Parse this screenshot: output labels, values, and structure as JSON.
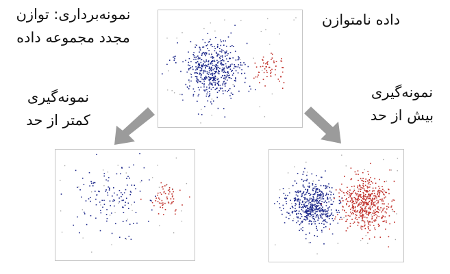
{
  "labels": {
    "title_line1": "نمونه‌برداری: توازن",
    "title_line2": "مجدد مجموعه داده",
    "imbalanced": "داده نامتوازن",
    "undersampling_line1": "نمونه‌گیری",
    "undersampling_line2": "کمتر از حد",
    "oversampling_line1": "نمونه‌گیری",
    "oversampling_line2": "بیش از حد"
  },
  "colors": {
    "majority": "#1f2a8c",
    "minority": "#c0302a",
    "arrow": "#9b9b9b",
    "panel_border": "#c4c4c4",
    "noise": "#a9a9a9"
  },
  "panels": {
    "imbalanced": {
      "majority_points": 520,
      "minority_points": 60,
      "majority_spread": 1.0,
      "minority_spread": 1.0
    },
    "undersampled": {
      "majority_points": 130,
      "minority_points": 60,
      "majority_spread": 1.2,
      "minority_spread": 1.0
    },
    "oversampled": {
      "majority_points": 520,
      "minority_points": 520,
      "majority_spread": 1.0,
      "minority_spread": 1.0
    }
  }
}
